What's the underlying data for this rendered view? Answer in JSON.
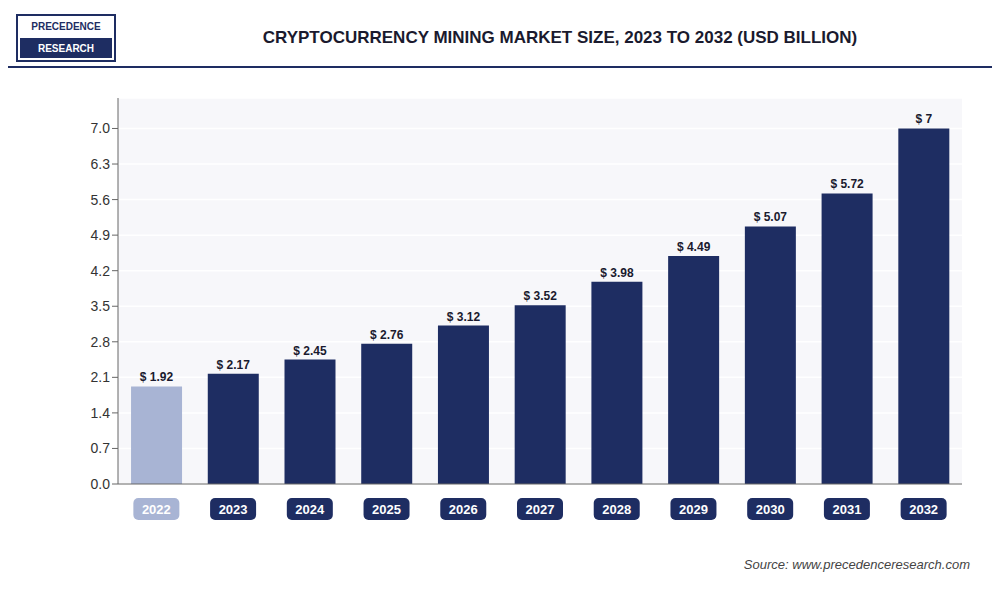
{
  "chart_data": {
    "type": "bar",
    "title": "CRYPTOCURRENCY MINING MARKET SIZE, 2023 TO 2032 (USD BILLION)",
    "categories": [
      "2022",
      "2023",
      "2024",
      "2025",
      "2026",
      "2027",
      "2028",
      "2029",
      "2030",
      "2031",
      "2032"
    ],
    "values": [
      1.92,
      2.17,
      2.45,
      2.76,
      3.12,
      3.52,
      3.98,
      4.49,
      5.07,
      5.72,
      7.0
    ],
    "value_labels": [
      "$ 1.92",
      "$ 2.17",
      "$ 2.45",
      "$ 2.76",
      "$ 3.12",
      "$ 3.52",
      "$ 3.98",
      "$ 4.49",
      "$ 5.07",
      "$ 5.72",
      "$ 7"
    ],
    "data_labels": true,
    "colors": [
      "#a8b4d4",
      "#1e2d62",
      "#1e2d62",
      "#1e2d62",
      "#1e2d62",
      "#1e2d62",
      "#1e2d62",
      "#1e2d62",
      "#1e2d62",
      "#1e2d62",
      "#1e2d62"
    ],
    "ylim": [
      0,
      7.6
    ],
    "yticks": [
      {
        "value": 0,
        "label": "0.0"
      },
      0.7,
      1.4,
      2.1,
      2.8,
      3.5,
      4.2,
      4.9,
      5.6,
      6.3,
      {
        "value": 7,
        "label": "7.0"
      }
    ],
    "grid": true,
    "annotations": [
      "PRECEDENCE",
      "RESEARCH",
      "Source: www.precedenceresearch.com"
    ]
  }
}
